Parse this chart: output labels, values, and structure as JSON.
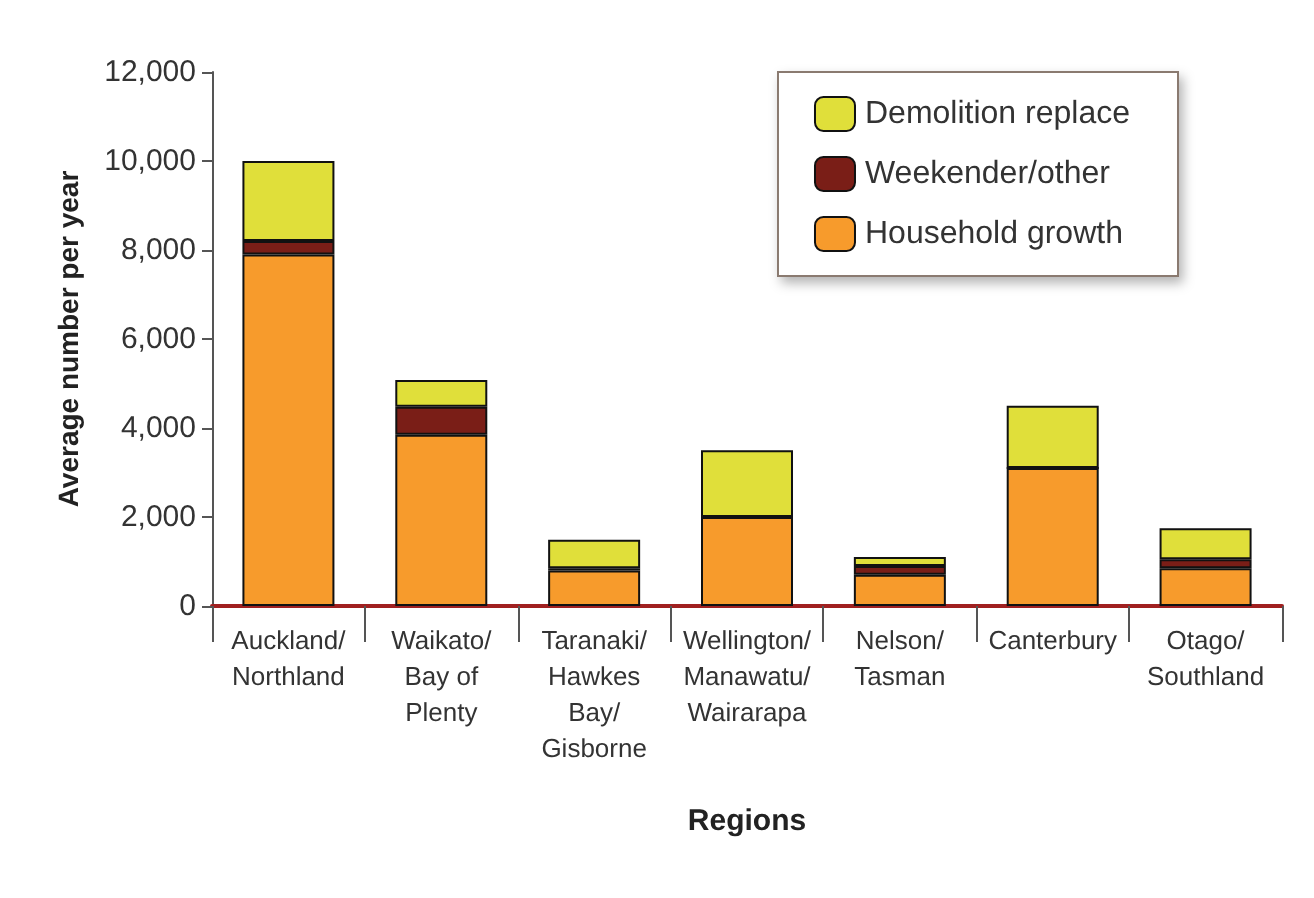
{
  "chart_data": {
    "type": "bar",
    "stacked": true,
    "xlabel": "Regions",
    "ylabel": "Average number per year",
    "categories": [
      "Auckland/\nNorthland",
      "Waikato/\nBay of\nPlenty",
      "Taranaki/\nHawkes\nBay/\nGisborne",
      "Wellington/\nManawatu/\nWairarapa",
      "Nelson/\nTasman",
      "Canterbury",
      "Otago/\nSouthland"
    ],
    "series": [
      {
        "name": "Household growth",
        "color": "#f79b2c",
        "values": [
          7900,
          3850,
          800,
          2000,
          700,
          3100,
          850
        ]
      },
      {
        "name": "Weekender/other",
        "color": "#7a1e17",
        "values": [
          300,
          630,
          50,
          0,
          200,
          0,
          200
        ]
      },
      {
        "name": "Demolition replace",
        "color": "#e0df3a",
        "values": [
          1800,
          600,
          640,
          1500,
          200,
          1400,
          700
        ]
      }
    ],
    "ylim": [
      0,
      12000
    ],
    "yticks": [
      0,
      {
        "value": 2000,
        "label": "2,000"
      },
      {
        "value": 4000,
        "label": "4,000"
      },
      {
        "value": 6000,
        "label": "6,000"
      },
      {
        "value": 8000,
        "label": "8,000"
      },
      {
        "value": 10000,
        "label": "10,000"
      },
      {
        "value": 12000,
        "label": "12,000"
      }
    ],
    "grid": false,
    "legend": "top right"
  }
}
